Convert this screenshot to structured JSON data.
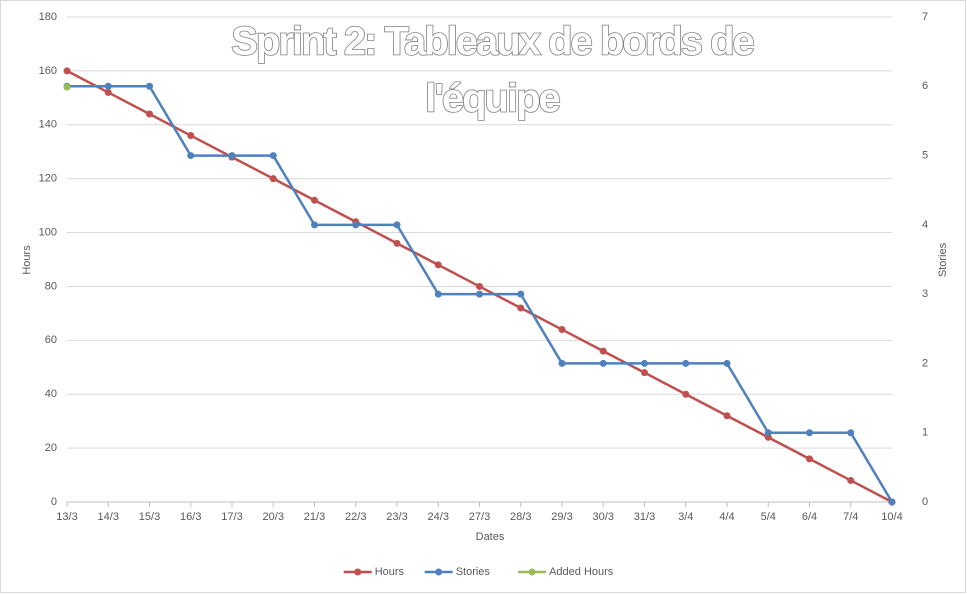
{
  "chart_data": {
    "type": "line",
    "title": [
      "Sprint 2: Tableaux de bords de",
      "l'équipe"
    ],
    "xlabel": "Dates",
    "ylabel": "Hours",
    "y2label": "Stories",
    "categories": [
      "13/3",
      "14/3",
      "15/3",
      "16/3",
      "17/3",
      "20/3",
      "21/3",
      "22/3",
      "23/3",
      "24/3",
      "27/3",
      "28/3",
      "29/3",
      "30/3",
      "31/3",
      "3/4",
      "4/4",
      "5/4",
      "6/4",
      "7/4",
      "10/4"
    ],
    "series": [
      {
        "name": "Hours",
        "color": "#c0504d",
        "values": [
          160,
          152,
          144,
          136,
          128,
          120,
          112,
          104,
          96,
          88,
          80,
          72,
          64,
          56,
          48,
          40,
          32,
          24,
          16,
          8,
          0
        ]
      },
      {
        "name": "Stories",
        "color": "#4f81bd",
        "axis": "y2",
        "values": [
          6,
          6,
          6,
          5,
          5,
          5,
          4,
          4,
          4,
          3,
          3,
          3,
          2,
          2,
          2,
          2,
          2,
          1,
          1,
          1,
          0
        ]
      },
      {
        "name": "Added Hours",
        "color": "#9bbb59",
        "values": [
          154,
          null,
          null,
          null,
          null,
          null,
          null,
          null,
          null,
          null,
          null,
          null,
          null,
          null,
          null,
          null,
          null,
          null,
          null,
          null,
          null
        ]
      }
    ],
    "ylim": [
      0,
      180
    ],
    "yticks": [
      0,
      20,
      40,
      60,
      80,
      100,
      120,
      140,
      160,
      180
    ],
    "y2lim": [
      0,
      7
    ],
    "y2ticks": [
      0,
      1,
      2,
      3,
      4,
      5,
      6,
      7
    ],
    "grid": true,
    "legend": "bottom"
  }
}
